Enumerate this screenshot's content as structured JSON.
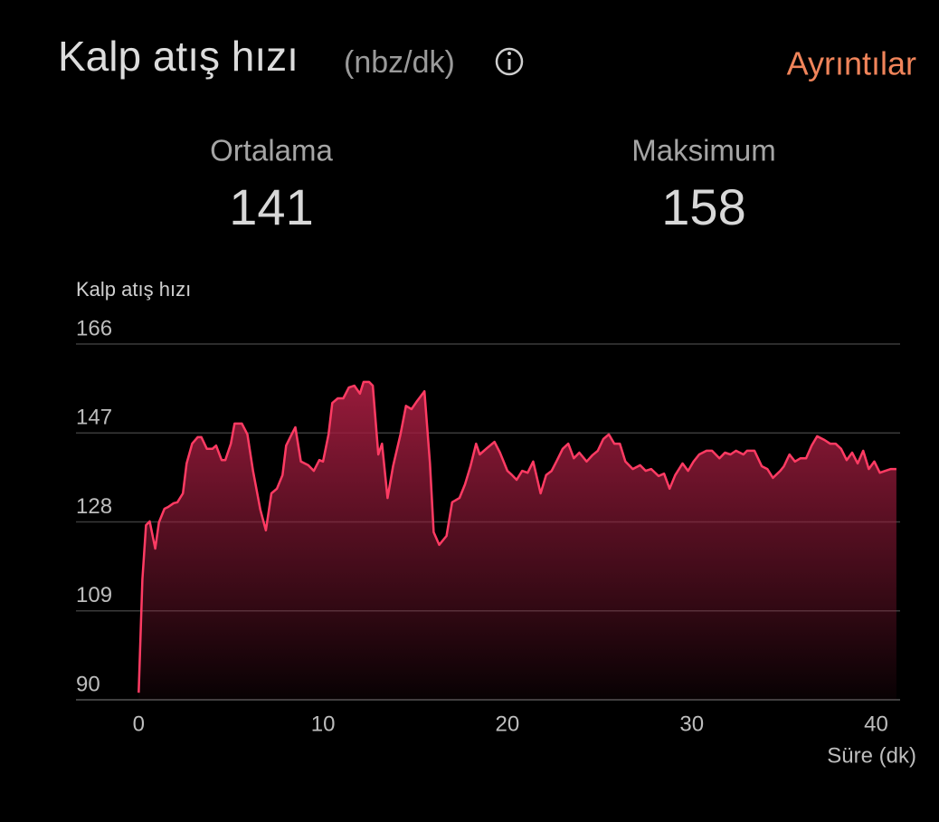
{
  "header": {
    "title": "Kalp atış hızı",
    "unit": "(nbz/dk)",
    "link": "Ayrıntılar"
  },
  "stats": [
    {
      "label": "Ortalama",
      "value": 141
    },
    {
      "label": "Maksimum",
      "value": 158
    }
  ],
  "chart_data": {
    "type": "area",
    "y_label": "Kalp atış hızı",
    "x_label": "Süre (dk)",
    "x": [
      0,
      0.2,
      0.4,
      0.6,
      0.9,
      1.1,
      1.4,
      1.6,
      1.9,
      2.1,
      2.4,
      2.6,
      2.9,
      3.2,
      3.4,
      3.7,
      4.0,
      4.2,
      4.5,
      4.7,
      5.0,
      5.2,
      5.6,
      5.9,
      6.2,
      6.6,
      6.9,
      7.2,
      7.5,
      7.8,
      8.0,
      8.3,
      8.5,
      8.8,
      9.2,
      9.5,
      9.8,
      10.0,
      10.3,
      10.5,
      10.8,
      11.1,
      11.4,
      11.7,
      12.0,
      12.2,
      12.5,
      12.7,
      13.0,
      13.2,
      13.5,
      13.8,
      14.2,
      14.5,
      14.8,
      15.1,
      15.5,
      15.8,
      16.0,
      16.3,
      16.7,
      17.0,
      17.4,
      17.7,
      18.0,
      18.3,
      18.5,
      18.9,
      19.3,
      19.6,
      20.0,
      20.2,
      20.5,
      20.8,
      21.1,
      21.4,
      21.8,
      22.1,
      22.4,
      22.7,
      23.0,
      23.3,
      23.6,
      23.9,
      24.3,
      24.6,
      24.9,
      25.2,
      25.5,
      25.8,
      26.1,
      26.4,
      26.8,
      27.2,
      27.5,
      27.8,
      28.2,
      28.5,
      28.8,
      29.1,
      29.5,
      29.8,
      30.1,
      30.4,
      30.8,
      31.1,
      31.5,
      31.8,
      32.1,
      32.4,
      32.8,
      33.0,
      33.4,
      33.8,
      34.1,
      34.4,
      34.8,
      35.0,
      35.3,
      35.6,
      35.9,
      36.2,
      36.5,
      36.8,
      37.2,
      37.5,
      37.8,
      38.1,
      38.4,
      38.7,
      39.0,
      39.3,
      39.6,
      39.9,
      40.2,
      40.5,
      40.8,
      41.1
    ],
    "values": [
      91.5,
      115.7,
      127.3,
      128.1,
      122.3,
      127.9,
      130.8,
      131.2,
      132,
      132.2,
      134.1,
      140.5,
      144.7,
      146.1,
      146.1,
      143.6,
      143.6,
      144.3,
      141.2,
      141.2,
      144.7,
      149,
      149,
      146.7,
      138.9,
      130.6,
      126.2,
      134.1,
      135.1,
      138,
      144.3,
      146.7,
      148.2,
      140.9,
      140.1,
      138.9,
      141.2,
      140.9,
      146.7,
      153.4,
      154.4,
      154.4,
      156.7,
      157.1,
      155.4,
      157.9,
      157.9,
      157.1,
      142.4,
      144.7,
      133.1,
      139.9,
      146.7,
      152.8,
      152.1,
      153.8,
      155.9,
      140.5,
      125.8,
      123.1,
      125,
      132.2,
      133.1,
      136,
      139.9,
      144.7,
      142.4,
      143.8,
      145.1,
      142.8,
      138.9,
      138.2,
      137,
      138.9,
      138.5,
      140.9,
      134.1,
      138,
      138.9,
      141.2,
      143.6,
      144.7,
      141.6,
      142.8,
      140.9,
      142.2,
      143.2,
      145.7,
      146.7,
      144.7,
      144.7,
      140.9,
      139.3,
      140.1,
      138.9,
      139.3,
      137.8,
      138.3,
      135.1,
      138,
      140.5,
      138.9,
      140.9,
      142.4,
      143.2,
      143.2,
      141.6,
      142.8,
      142.4,
      143.2,
      142.4,
      143.2,
      143.2,
      139.9,
      139.3,
      137.4,
      138.9,
      139.9,
      142.4,
      140.9,
      141.6,
      141.6,
      144.3,
      146.3,
      145.5,
      144.7,
      144.7,
      143.6,
      141.2,
      142.8,
      140.5,
      143.2,
      139.3,
      140.9,
      138.5,
      138.9,
      139.3,
      139.3
    ],
    "color": "#ff3b63",
    "xlim": [
      -3.4,
      41.3
    ],
    "ylim": [
      90,
      166
    ],
    "xticks": [
      0,
      10,
      20,
      30,
      40
    ],
    "yticks": [
      90,
      109,
      128,
      147,
      166
    ],
    "grid": true
  }
}
